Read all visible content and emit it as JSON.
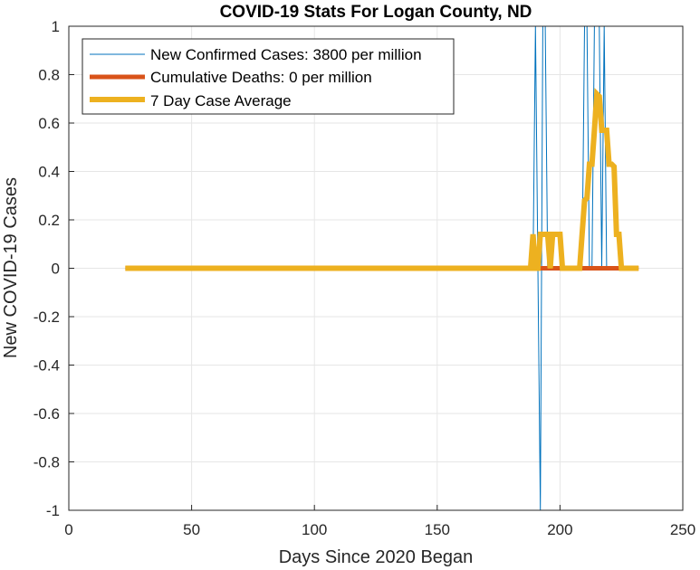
{
  "chart_data": {
    "type": "line",
    "title": "COVID-19 Stats For Logan County, ND",
    "xlabel": "Days Since 2020 Began",
    "ylabel": "New COVID-19 Cases",
    "xlim": [
      0,
      250
    ],
    "ylim": [
      -1,
      1
    ],
    "xticks": [
      "0",
      "50",
      "100",
      "150",
      "200",
      "250"
    ],
    "yticks": [
      "-1",
      "-0.8",
      "-0.6",
      "-0.4",
      "-0.2",
      "0",
      "0.2",
      "0.4",
      "0.6",
      "0.8",
      "1"
    ],
    "grid": true,
    "legend_position": "top-left",
    "series": [
      {
        "name": "New Confirmed Cases: 3800 per million",
        "color": "#0072BD",
        "style": "thin",
        "x": [
          23,
          189,
          190,
          191,
          192,
          193,
          194,
          195,
          196,
          197,
          198,
          199,
          200,
          201,
          209,
          210,
          211,
          212,
          213,
          214,
          215,
          216,
          217,
          218,
          219,
          220,
          232
        ],
        "y": [
          0,
          0,
          1,
          0,
          -1,
          1,
          1,
          0,
          0,
          0,
          0,
          0,
          0,
          0,
          0,
          1,
          1,
          0,
          0,
          1,
          1,
          1,
          0,
          1,
          0,
          0,
          0
        ]
      },
      {
        "name": "Cumulative Deaths: 0 per million",
        "color": "#D95319",
        "style": "medium",
        "x": [
          23,
          232
        ],
        "y": [
          0,
          0
        ]
      },
      {
        "name": "7 Day Case Average",
        "color": "#EDB120",
        "style": "thick",
        "x": [
          23,
          188,
          189,
          190,
          191,
          192,
          193,
          194,
          195,
          196,
          197,
          198,
          199,
          200,
          201,
          202,
          203,
          208,
          209,
          210,
          211,
          212,
          213,
          214,
          215,
          216,
          217,
          218,
          219,
          220,
          221,
          222,
          223,
          224,
          225,
          226,
          232
        ],
        "y": [
          0,
          0,
          0.14,
          0,
          0,
          0.14,
          0.14,
          0.14,
          0.14,
          0,
          0.14,
          0.14,
          0.14,
          0.14,
          0,
          0,
          0,
          0,
          0.14,
          0.28,
          0.29,
          0.43,
          0.43,
          0.57,
          0.72,
          0.71,
          0.57,
          0.57,
          0.57,
          0.43,
          0.43,
          0.42,
          0.14,
          0.14,
          0,
          0,
          0
        ]
      }
    ]
  }
}
